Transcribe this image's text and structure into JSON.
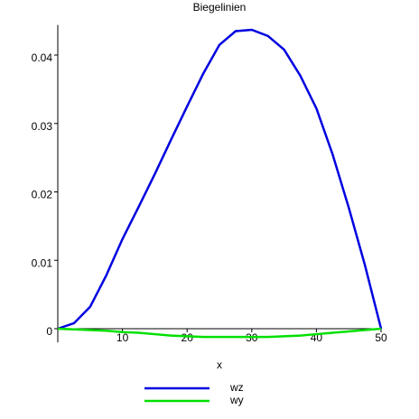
{
  "chart_data": {
    "type": "line",
    "title": "Biegelinien",
    "x_label": "x",
    "x": [
      0,
      2.5,
      5,
      7.5,
      10,
      12.5,
      15,
      17.5,
      20,
      22.5,
      25,
      27.5,
      30,
      32.5,
      35,
      37.5,
      40,
      42.5,
      45,
      47.5,
      50
    ],
    "series": [
      {
        "name": "wz",
        "color": "#0000e0",
        "values": [
          0,
          0.0008,
          0.0032,
          0.0078,
          0.0131,
          0.0178,
          0.0226,
          0.0276,
          0.0325,
          0.0373,
          0.0415,
          0.0435,
          0.0437,
          0.0428,
          0.0408,
          0.037,
          0.0322,
          0.0255,
          0.0177,
          0.0093,
          0
        ]
      },
      {
        "name": "wy",
        "color": "#00e000",
        "values": [
          0,
          -0.0001,
          -0.0002,
          -0.0003,
          -0.0005,
          -0.0006,
          -0.0008,
          -0.001,
          -0.0011,
          -0.0012,
          -0.0012,
          -0.0012,
          -0.0012,
          -0.0012,
          -0.0011,
          -0.001,
          -0.0008,
          -0.0006,
          -0.0004,
          -0.0002,
          0
        ]
      }
    ],
    "xlim": [
      0,
      50
    ],
    "xticks": [
      10,
      20,
      30,
      40,
      50
    ],
    "ylim": [
      -0.002,
      0.0444
    ],
    "yticks": [
      0,
      0.01,
      0.02,
      0.03,
      0.04
    ],
    "legend": "bottom"
  }
}
